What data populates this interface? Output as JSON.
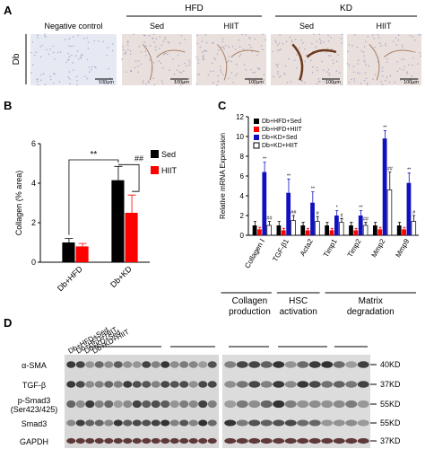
{
  "panel_a": {
    "label": "A",
    "row_label": "Db",
    "negative": "Negative control",
    "groups": [
      {
        "name": "HFD",
        "columns": [
          "Sed",
          "HIIT"
        ]
      },
      {
        "name": "KD",
        "columns": [
          "Sed",
          "HIIT"
        ]
      }
    ],
    "scale_bars": [
      "100μm",
      "100μm",
      "100μm",
      "100μm",
      "100μm"
    ]
  },
  "chart_data": [
    {
      "type": "bar",
      "panel": "B",
      "ylabel": "Collagen (% area)",
      "categories": [
        "Db+HFD",
        "Db+KD"
      ],
      "ylim": [
        0,
        6
      ],
      "yticks": [
        0,
        2,
        4,
        6
      ],
      "series": [
        {
          "name": "Sed",
          "color": "#000000",
          "values": [
            1.0,
            4.15
          ],
          "errors": [
            0.2,
            0.7
          ]
        },
        {
          "name": "HIIT",
          "color": "#ff0000",
          "values": [
            0.8,
            2.5
          ],
          "errors": [
            0.15,
            0.9
          ]
        }
      ],
      "annotations": [
        "**",
        "##"
      ]
    },
    {
      "type": "bar",
      "panel": "C",
      "ylabel": "Relative mRNA Expression",
      "categories": [
        "Collagen Ⅰ",
        "TGF-β1",
        "Acta2",
        "Timp1",
        "Timp2",
        "Mmp2",
        "Mmp9"
      ],
      "ylim": [
        0,
        12
      ],
      "yticks": [
        0,
        2,
        4,
        6,
        8,
        10,
        12
      ],
      "series": [
        {
          "name": "Db+HFD+Sed",
          "color": "#000000",
          "values": [
            1,
            1,
            1,
            1,
            1,
            1,
            1
          ],
          "errors": [
            0.4,
            0.4,
            0.3,
            0.3,
            0.3,
            0.3,
            0.3
          ]
        },
        {
          "name": "Db+HFD+HIIT",
          "color": "#ff0000",
          "values": [
            0.6,
            0.5,
            0.5,
            0.5,
            0.5,
            0.6,
            0.6
          ],
          "errors": [
            0.2,
            0.2,
            0.2,
            0.2,
            0.2,
            0.2,
            0.2
          ]
        },
        {
          "name": "Db+KD+Sed",
          "color": "#1010c0",
          "values": [
            6.4,
            4.3,
            3.3,
            2.0,
            2.0,
            9.8,
            5.3
          ],
          "errors": [
            1.0,
            1.4,
            1.1,
            0.5,
            0.5,
            0.8,
            1.0
          ],
          "annotations": [
            "**",
            "**",
            "**",
            "*",
            "**",
            "**",
            "**"
          ]
        },
        {
          "name": "Db+KD+HIIT",
          "color": "#ffffff",
          "values": [
            1.0,
            1.5,
            1.4,
            1.3,
            1.0,
            4.6,
            1.4
          ],
          "errors": [
            0.4,
            0.5,
            0.5,
            0.4,
            0.3,
            1.8,
            0.6
          ],
          "annotations": [
            "##",
            "##",
            "#",
            "#",
            "##",
            "##",
            "#"
          ]
        }
      ],
      "groups": [
        [
          "Collagen",
          "production"
        ],
        [
          "HSC",
          "activation"
        ],
        [
          "Matrix",
          "degradation"
        ]
      ]
    }
  ],
  "panel_d": {
    "label": "D",
    "columns": [
      "Db+HFD+Sed",
      "Db+HFD+HIIT",
      "Db+KD+Sed",
      "Db+KD+HIIT"
    ],
    "rows": [
      {
        "name": [
          "α-SMA"
        ],
        "size": "40KD"
      },
      {
        "name": [
          "TGF-β"
        ],
        "size": "37KD"
      },
      {
        "name": [
          "p-Smad3",
          "(Ser423/425)"
        ],
        "size": "55KD"
      },
      {
        "name": [
          "Smad3"
        ],
        "size": "55KD"
      },
      {
        "name": [
          "GAPDH"
        ],
        "size": "37KD"
      }
    ]
  }
}
